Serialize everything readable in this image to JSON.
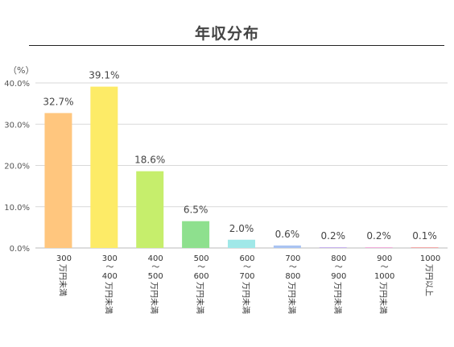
{
  "chart_data": {
    "type": "bar",
    "title": "年収分布",
    "unit_label": "（%）",
    "ylim": [
      0,
      40
    ],
    "y_ticks": [
      {
        "value": 0,
        "label": "0.0%"
      },
      {
        "value": 10,
        "label": "10.0%"
      },
      {
        "value": 20,
        "label": "20.0%"
      },
      {
        "value": 30,
        "label": "30.0%"
      },
      {
        "value": 40,
        "label": "40.0%"
      }
    ],
    "grid": true,
    "legend": "none",
    "categories": [
      {
        "top": [
          "300"
        ],
        "bottom": "万円未満"
      },
      {
        "top": [
          "300",
          "～",
          "400"
        ],
        "bottom": "万円未満"
      },
      {
        "top": [
          "400",
          "～",
          "500"
        ],
        "bottom": "万円未満"
      },
      {
        "top": [
          "500",
          "～",
          "600"
        ],
        "bottom": "万円未満"
      },
      {
        "top": [
          "600",
          "～",
          "700"
        ],
        "bottom": "万円未満"
      },
      {
        "top": [
          "700",
          "～",
          "800"
        ],
        "bottom": "万円未満"
      },
      {
        "top": [
          "800",
          "～",
          "900"
        ],
        "bottom": "万円未満"
      },
      {
        "top": [
          "900",
          "～",
          "1000"
        ],
        "bottom": "万円未満"
      },
      {
        "top": [
          "1000"
        ],
        "bottom": "万円以上"
      }
    ],
    "values": [
      32.7,
      39.1,
      18.6,
      6.5,
      2.0,
      0.6,
      0.2,
      0.2,
      0.1
    ],
    "value_labels": [
      "32.7%",
      "39.1%",
      "18.6%",
      "6.5%",
      "2.0%",
      "0.6%",
      "0.2%",
      "0.2%",
      "0.1%"
    ],
    "colors": [
      "#FFC67E",
      "#FDEB67",
      "#C6EE6C",
      "#8EE08E",
      "#A0E8E8",
      "#A9C3F2",
      "#C8B2EE",
      "#F2AEDC",
      "#F5A9A9"
    ],
    "axis_color": "#BBBBBB",
    "grid_color": "#D9D9D9"
  }
}
